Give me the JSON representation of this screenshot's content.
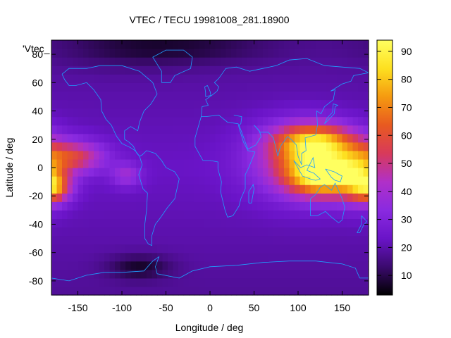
{
  "chart_data": {
    "type": "heatmap",
    "title": "VTEC / TECU 19981008_281.18900",
    "xlabel": "Longitude / deg",
    "ylabel": "Latitude / deg",
    "key_label": "'Vtec_",
    "xlim": [
      -180,
      180
    ],
    "ylim": [
      -90,
      90
    ],
    "x_ticks": [
      -150,
      -100,
      -50,
      0,
      50,
      100,
      150
    ],
    "y_ticks": [
      -80,
      -60,
      -40,
      -20,
      0,
      20,
      40,
      60,
      80
    ],
    "color_range": [
      3,
      94
    ],
    "colorbar_ticks": [
      10,
      20,
      30,
      40,
      50,
      60,
      70,
      80,
      90
    ],
    "colormap": [
      "#000000",
      "#3b0a6e",
      "#6a14c8",
      "#8a2ae0",
      "#b030c8",
      "#d83a5a",
      "#e85a20",
      "#f59a10",
      "#fde020",
      "#ffff60"
    ],
    "coastline_color": "#1ea0ff",
    "grid_step_deg": 6,
    "features": [
      {
        "lon": 130,
        "lat": -5,
        "slon": 28,
        "slat": 10,
        "amp": 62
      },
      {
        "lon": 120,
        "lat": 18,
        "slon": 32,
        "slat": 9,
        "amp": 48
      },
      {
        "lon": 105,
        "lat": 5,
        "slon": 40,
        "slat": 18,
        "amp": 28
      },
      {
        "lon": 170,
        "lat": -5,
        "slon": 18,
        "slat": 14,
        "amp": 28
      },
      {
        "lon": -178,
        "lat": -14,
        "slon": 14,
        "slat": 7,
        "amp": 38
      },
      {
        "lon": -155,
        "lat": 8,
        "slon": 25,
        "slat": 8,
        "amp": 32
      },
      {
        "lon": -95,
        "lat": -5,
        "slon": 12,
        "slat": 6,
        "amp": 16
      },
      {
        "lon": -80,
        "lat": -70,
        "slon": 25,
        "slat": 6,
        "amp": -12
      },
      {
        "lon": -90,
        "lat": 85,
        "slon": 60,
        "slat": 10,
        "amp": -8
      },
      {
        "lon": 0,
        "lat": 85,
        "slon": 60,
        "slat": 8,
        "amp": -6
      }
    ],
    "base_value": 23
  }
}
